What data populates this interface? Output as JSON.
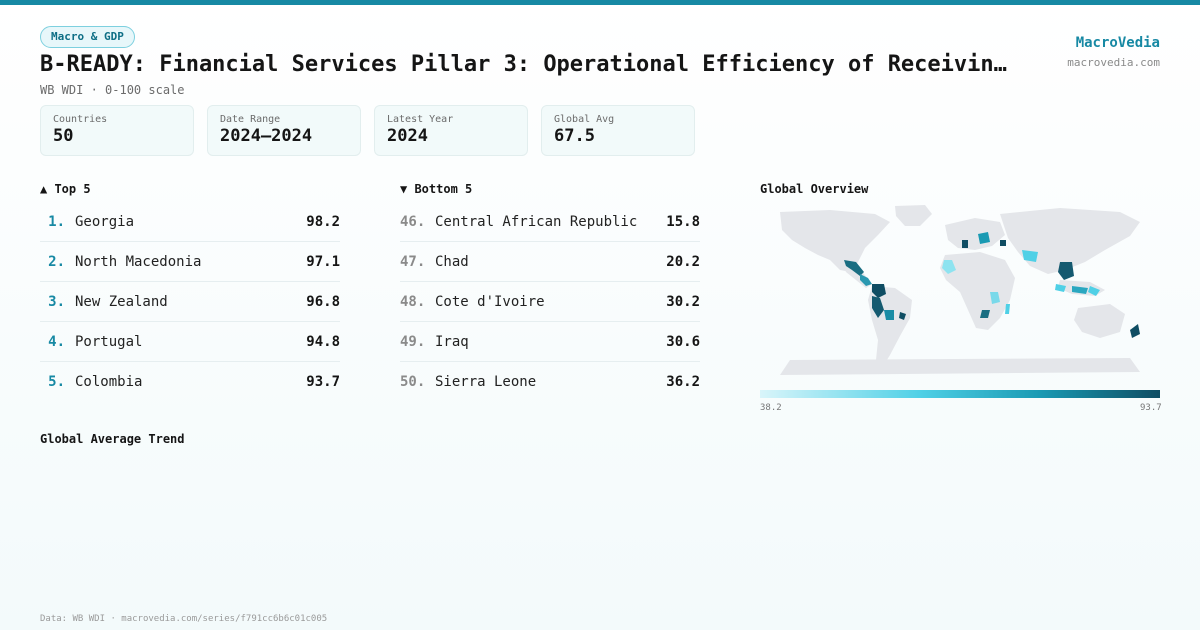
{
  "header": {
    "badge": "Macro & GDP",
    "title": "B-READY: Financial Services Pillar 3: Operational Efficiency of Receivin…",
    "subtitle": "WB WDI · 0-100 scale",
    "brand": "MacroVedia",
    "brand_url": "macrovedia.com"
  },
  "stats": [
    {
      "label": "Countries",
      "value": "50"
    },
    {
      "label": "Date Range",
      "value": "2024–2024"
    },
    {
      "label": "Latest Year",
      "value": "2024"
    },
    {
      "label": "Global Avg",
      "value": "67.5"
    }
  ],
  "top": {
    "heading": "▲ Top 5",
    "items": [
      {
        "rank": "1.",
        "name": "Georgia",
        "value": "98.2"
      },
      {
        "rank": "2.",
        "name": "North Macedonia",
        "value": "97.1"
      },
      {
        "rank": "3.",
        "name": "New Zealand",
        "value": "96.8"
      },
      {
        "rank": "4.",
        "name": "Portugal",
        "value": "94.8"
      },
      {
        "rank": "5.",
        "name": "Colombia",
        "value": "93.7"
      }
    ]
  },
  "bottom": {
    "heading": "▼ Bottom 5",
    "items": [
      {
        "rank": "46.",
        "name": "Central African Republic",
        "value": "15.8"
      },
      {
        "rank": "47.",
        "name": "Chad",
        "value": "20.2"
      },
      {
        "rank": "48.",
        "name": "Cote d'Ivoire",
        "value": "30.2"
      },
      {
        "rank": "49.",
        "name": "Iraq",
        "value": "30.6"
      },
      {
        "rank": "50.",
        "name": "Sierra Leone",
        "value": "36.2"
      }
    ]
  },
  "map": {
    "heading": "Global Overview",
    "legend_min": "38.2",
    "legend_max": "93.7",
    "colors": {
      "land": "#e4e6ea",
      "low": "#d9f5fa",
      "mid": "#4fd0e6",
      "high": "#0f4d63"
    }
  },
  "trend": {
    "heading": "Global Average Trend"
  },
  "footer": "Data: WB WDI · macrovedia.com/series/f791cc6b6c01c005"
}
